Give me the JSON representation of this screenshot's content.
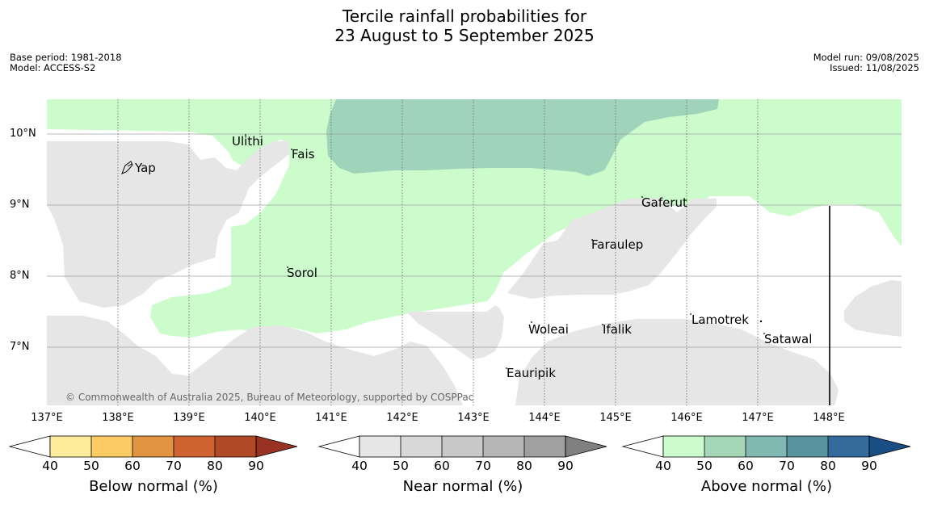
{
  "title_line1": "Tercile rainfall probabilities for",
  "title_line2": "23 August to 5 September 2025",
  "base_period": "Base period: 1981-2018",
  "model": "Model: ACCESS-S2",
  "model_run": "Model run: 09/08/2025",
  "issued": "Issued: 11/08/2025",
  "lat_labels": [
    "10°N",
    "9°N",
    "8°N",
    "7°N"
  ],
  "lon_labels": [
    "137°E",
    "138°E",
    "139°E",
    "140°E",
    "141°E",
    "142°E",
    "143°E",
    "144°E",
    "145°E",
    "146°E",
    "147°E",
    "148°E"
  ],
  "places": {
    "ulithi": "Ulithi",
    "fais": "Fais",
    "yap": "Yap",
    "gaferut": "Gaferut",
    "faraulep": "Faraulep",
    "sorol": "Sorol",
    "woleai": "Woleai",
    "ifalik": "Ifalik",
    "lamotrek": "Lamotrek",
    "satawal": "Satawal",
    "eauripik": "Eauripik"
  },
  "copyright": "© Commonwealth of Australia 2025, Bureau of Meteorology, supported by COSPPac",
  "colorbars": {
    "below": {
      "title": "Below normal (%)",
      "ticks": [
        "40",
        "50",
        "60",
        "70",
        "80",
        "90"
      ],
      "colors": [
        "#ffffff",
        "#feeb9b",
        "#fdcb64",
        "#e39443",
        "#ce6331",
        "#b04a26",
        "#983324"
      ]
    },
    "near": {
      "title": "Near normal (%)",
      "ticks": [
        "40",
        "50",
        "60",
        "70",
        "80",
        "90"
      ],
      "colors": [
        "#ffffff",
        "#e7e7e7",
        "#d8d8d8",
        "#c8c8c8",
        "#b5b5b5",
        "#a0a0a0",
        "#808080"
      ]
    },
    "above": {
      "title": "Above normal (%)",
      "ticks": [
        "40",
        "50",
        "60",
        "70",
        "80",
        "90"
      ],
      "colors": [
        "#ffffff",
        "#ccfccc",
        "#a4d6b8",
        "#80b8b2",
        "#5b92a0",
        "#336b9c",
        "#184e84"
      ]
    }
  },
  "map_colors": {
    "above_50": "#ccfccc",
    "above_60": "#9fd4bb",
    "near_50": "#e6e6e6",
    "grid": "#999999"
  }
}
